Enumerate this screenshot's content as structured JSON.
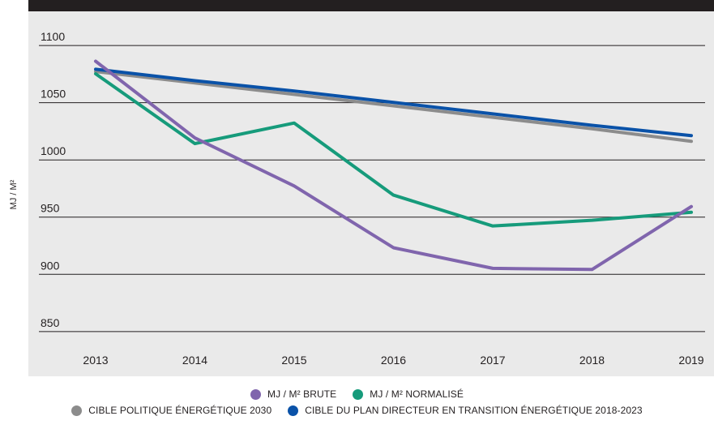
{
  "chart_data": {
    "type": "line",
    "title": "",
    "xlabel": "",
    "ylabel": "MJ / M²",
    "x": [
      "2013",
      "2014",
      "2015",
      "2016",
      "2017",
      "2018",
      "2019"
    ],
    "yticks": [
      850,
      900,
      950,
      1000,
      1050,
      1100
    ],
    "ylim": [
      835,
      1110
    ],
    "grid": "horizontal",
    "legend_position": "bottom",
    "series": [
      {
        "name": "MJ / M² BRUTE",
        "color": "#8065ad",
        "values": [
          1082,
          1015,
          973,
          919,
          901,
          900,
          955
        ]
      },
      {
        "name": "MJ / M² NORMALISÉ",
        "color": "#169b7b",
        "values": [
          1071,
          1010,
          1028,
          965,
          938,
          943,
          950
        ]
      },
      {
        "name": "CIBLE POLITIQUE ÉNERGÉTIQUE 2030",
        "color": "#8c8c8c",
        "values": [
          1073,
          1063,
          1053,
          1043,
          1033,
          1023,
          1012
        ]
      },
      {
        "name": "CIBLE DU PLAN DIRECTEUR EN TRANSITION ÉNERGÉTIQUE 2018-2023",
        "color": "#0a52a8",
        "values": [
          1075,
          1065,
          1056,
          1046,
          1036,
          1026,
          1017
        ]
      }
    ]
  }
}
